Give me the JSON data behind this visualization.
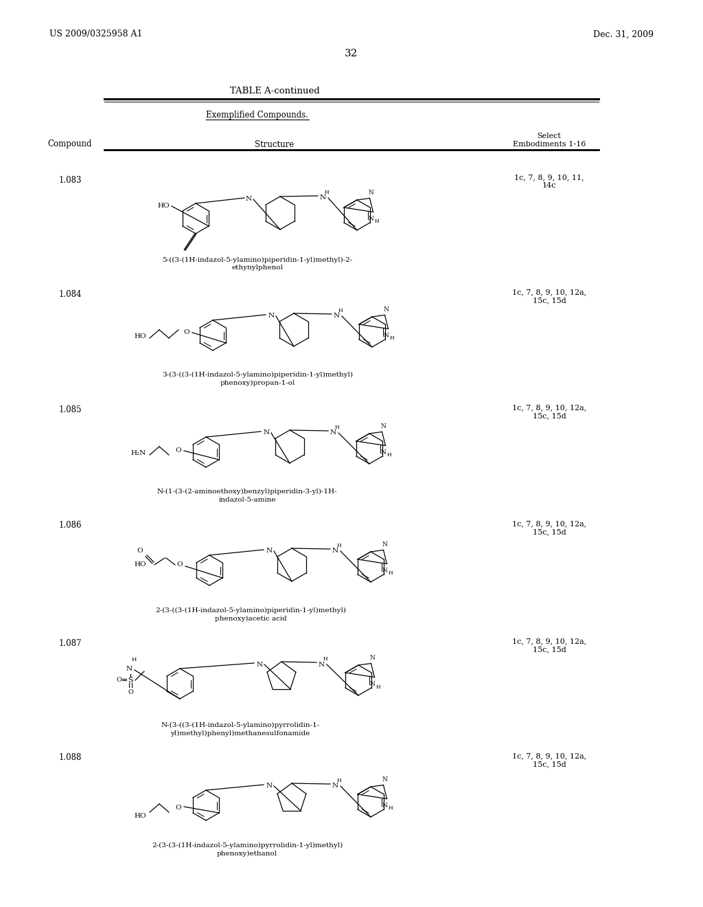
{
  "page_header_left": "US 2009/0325958 A1",
  "page_header_right": "Dec. 31, 2009",
  "page_number": "32",
  "table_title": "TABLE A-continued",
  "sub_header": "Exemplified Compounds.",
  "col1_header": "Compound",
  "col2_header": "Structure",
  "col3_header_line1": "Select",
  "col3_header_line2": "Embodiments 1-16",
  "compounds": [
    {
      "id": "1.083",
      "name_line1": "5-((3-(1H-indazol-5-ylamino)piperidin-1-yl)methyl)-2-",
      "name_line2": "ethynylphenol",
      "embodiments_line1": "1c, 7, 8, 9, 10, 11,",
      "embodiments_line2": "14c"
    },
    {
      "id": "1.084",
      "name_line1": "3-(3-((3-(1H-indazol-5-ylamino)piperidin-1-yl)methyl)",
      "name_line2": "phenoxy)propan-1-ol",
      "embodiments_line1": "1c, 7, 8, 9, 10, 12a,",
      "embodiments_line2": "15c, 15d"
    },
    {
      "id": "1.085",
      "name_line1": "N-(1-(3-(2-aminoethoxy)benzyl)piperidin-3-yl)-1H-",
      "name_line2": "indazol-5-amine",
      "embodiments_line1": "1c, 7, 8, 9, 10, 12a,",
      "embodiments_line2": "15c, 15d"
    },
    {
      "id": "1.086",
      "name_line1": "2-(3-((3-(1H-indazol-5-ylamino)piperidin-1-yl)methyl)",
      "name_line2": "phenoxy)acetic acid",
      "embodiments_line1": "1c, 7, 8, 9, 10, 12a,",
      "embodiments_line2": "15c, 15d"
    },
    {
      "id": "1.087",
      "name_line1": "N-(3-((3-(1H-indazol-5-ylamino)pyrrolidin-1-",
      "name_line2": "yl)methyl)phenyl)methanesulfonamide",
      "embodiments_line1": "1c, 7, 8, 9, 10, 12a,",
      "embodiments_line2": "15c, 15d"
    },
    {
      "id": "1.088",
      "name_line1": "2-(3-(3-(1H-indazol-5-ylamino)pyrrolidin-1-yl)methyl)",
      "name_line2": "phenoxy)ethanol",
      "embodiments_line1": "1c, 7, 8, 9, 10, 12a,",
      "embodiments_line2": "15c, 15d"
    }
  ]
}
